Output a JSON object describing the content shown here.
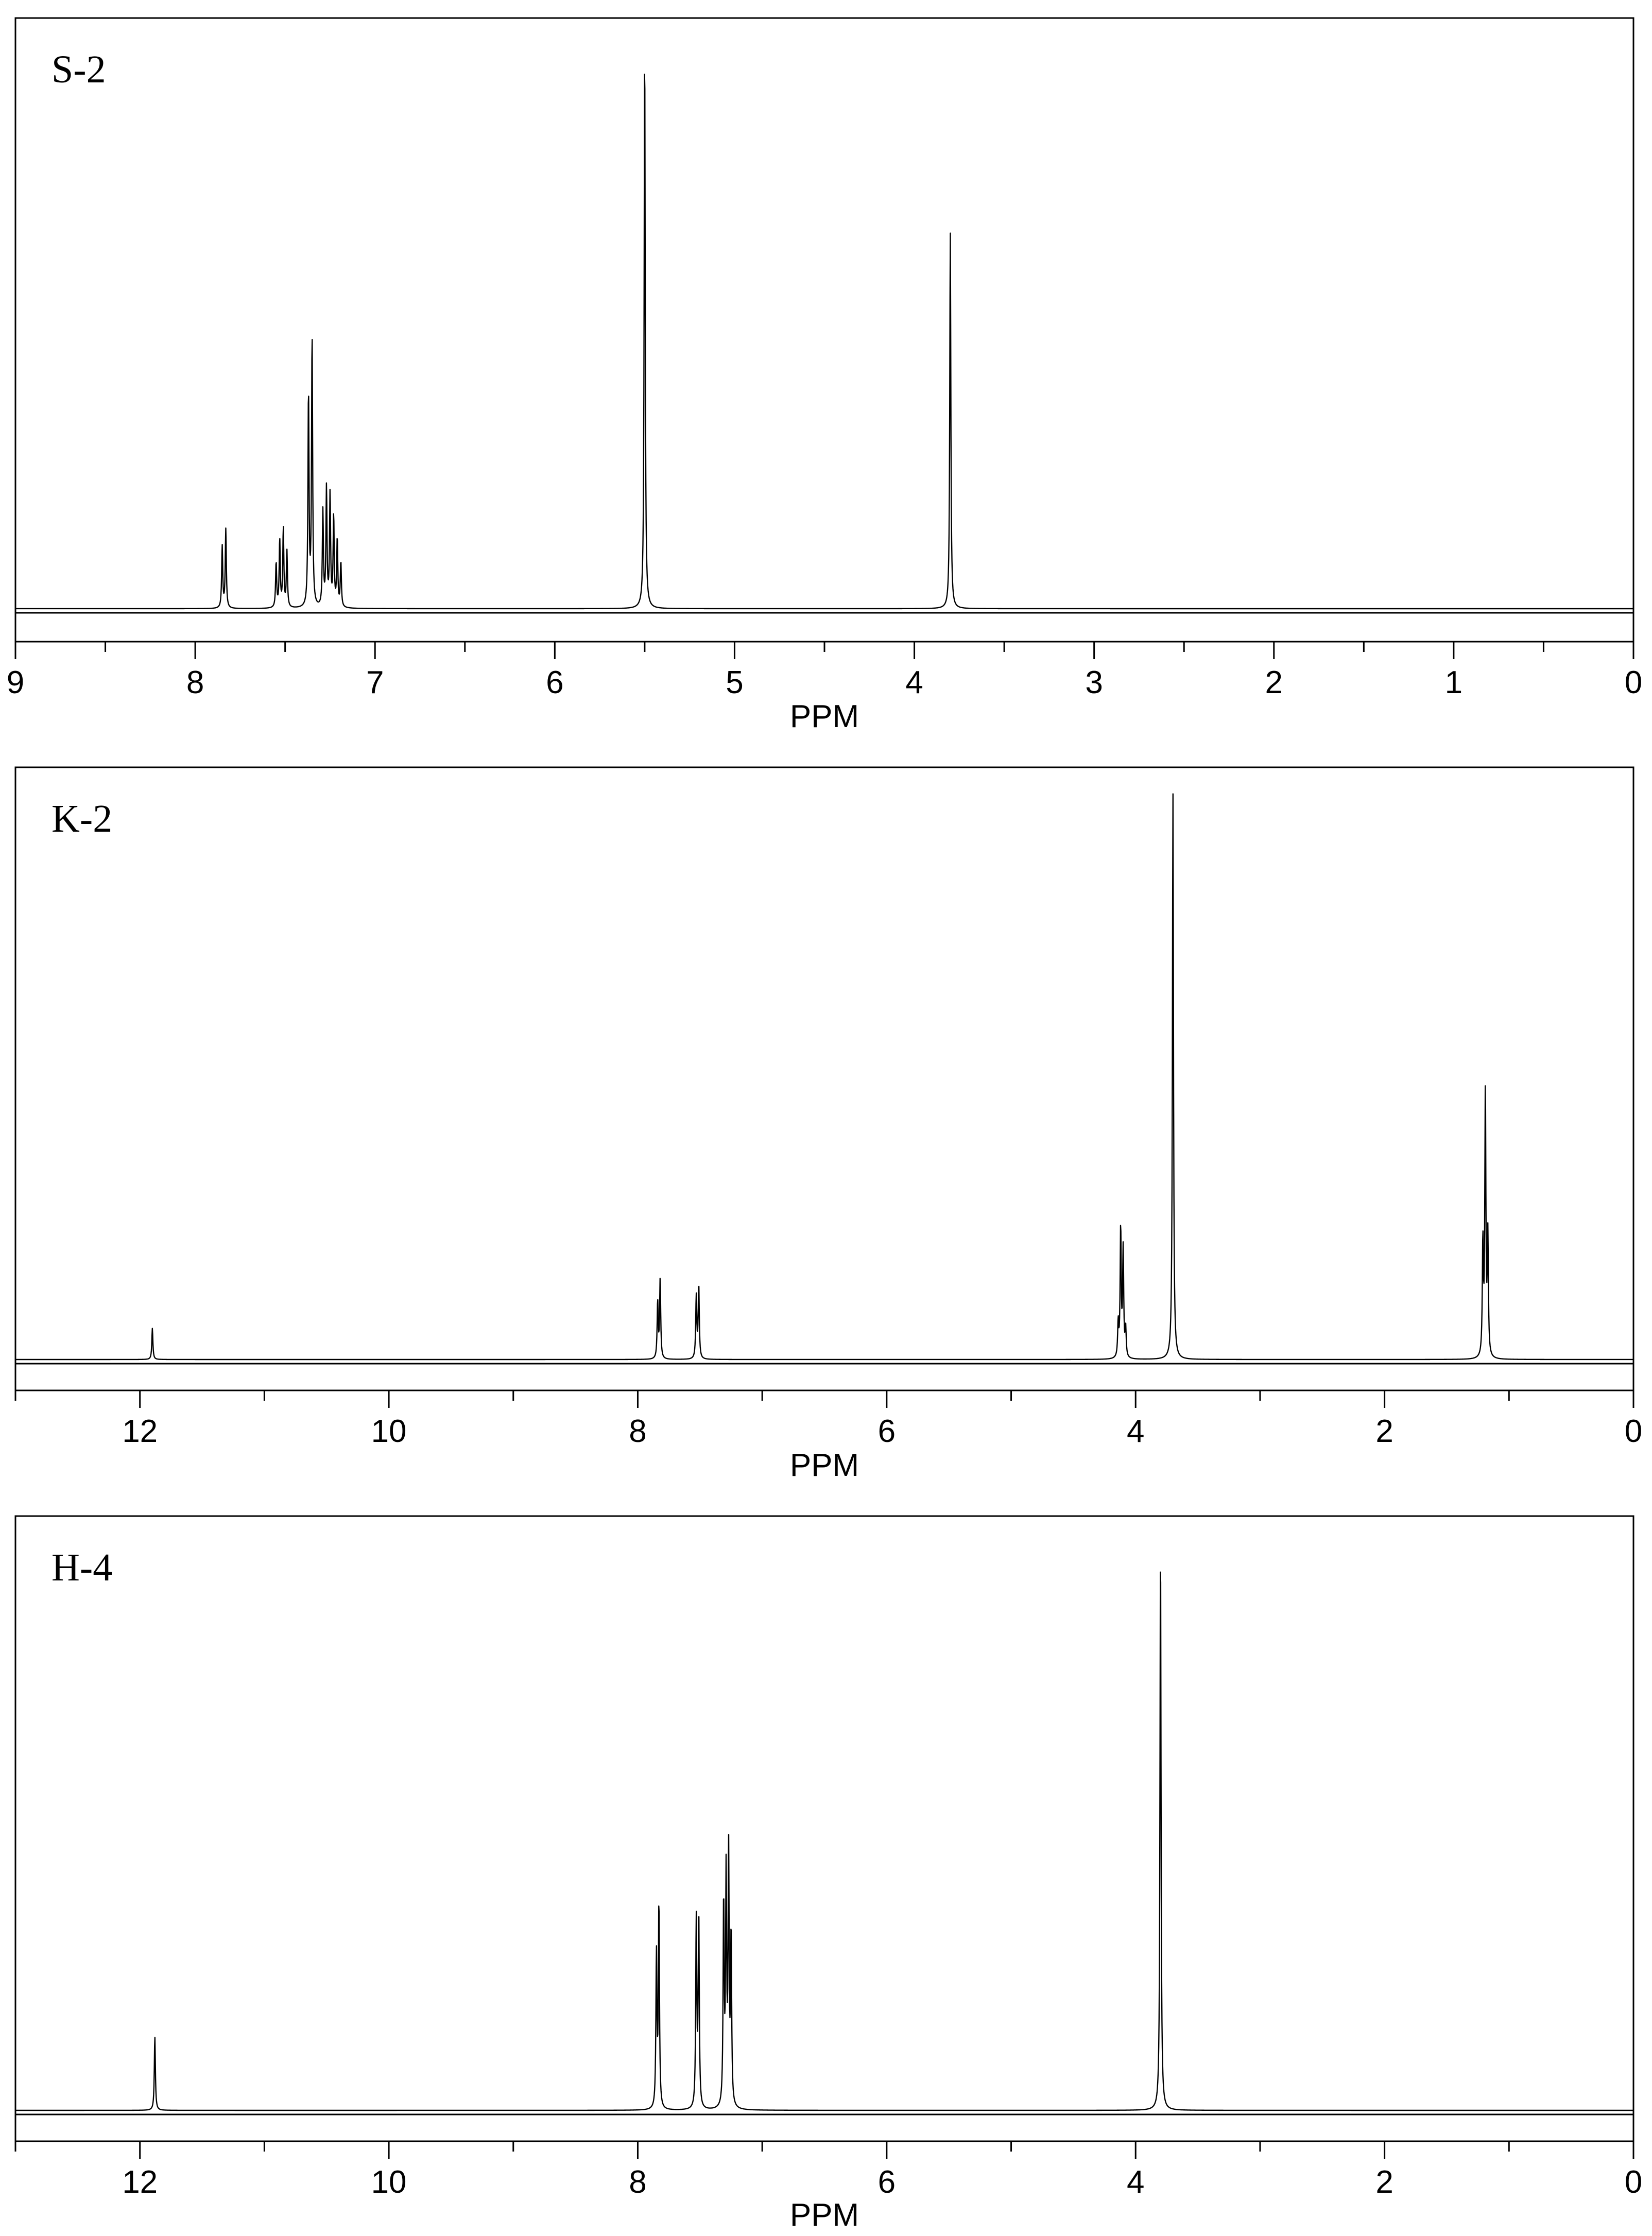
{
  "chart_data": [
    {
      "type": "line",
      "panel_label": "S-2",
      "xlabel": "PPM",
      "xlim": [
        9,
        0
      ],
      "x_reversed": true,
      "x_ticks": [
        9,
        8,
        7,
        6,
        5,
        4,
        3,
        2,
        1,
        0
      ],
      "ylim": [
        0,
        1
      ],
      "grid": false,
      "peaks": [
        {
          "ppm": 7.85,
          "height": 0.11
        },
        {
          "ppm": 7.83,
          "height": 0.14
        },
        {
          "ppm": 7.55,
          "height": 0.08
        },
        {
          "ppm": 7.53,
          "height": 0.12
        },
        {
          "ppm": 7.51,
          "height": 0.14
        },
        {
          "ppm": 7.49,
          "height": 0.1
        },
        {
          "ppm": 7.37,
          "height": 0.38
        },
        {
          "ppm": 7.35,
          "height": 0.48
        },
        {
          "ppm": 7.29,
          "height": 0.17
        },
        {
          "ppm": 7.27,
          "height": 0.21
        },
        {
          "ppm": 7.25,
          "height": 0.2
        },
        {
          "ppm": 7.23,
          "height": 0.16
        },
        {
          "ppm": 7.21,
          "height": 0.12
        },
        {
          "ppm": 7.19,
          "height": 0.08
        },
        {
          "ppm": 5.5,
          "height": 1.0
        },
        {
          "ppm": 3.8,
          "height": 0.67
        }
      ]
    },
    {
      "type": "line",
      "panel_label": "K-2",
      "xlabel": "PPM",
      "xlim": [
        13,
        0
      ],
      "x_reversed": true,
      "x_ticks": [
        12,
        10,
        8,
        6,
        4,
        2,
        0
      ],
      "ylim": [
        0,
        1
      ],
      "grid": false,
      "peaks": [
        {
          "ppm": 11.9,
          "height": 0.055
        },
        {
          "ppm": 7.84,
          "height": 0.1
        },
        {
          "ppm": 7.82,
          "height": 0.14
        },
        {
          "ppm": 7.53,
          "height": 0.11
        },
        {
          "ppm": 7.51,
          "height": 0.13
        },
        {
          "ppm": 4.14,
          "height": 0.06
        },
        {
          "ppm": 4.12,
          "height": 0.23
        },
        {
          "ppm": 4.1,
          "height": 0.19
        },
        {
          "ppm": 4.08,
          "height": 0.05
        },
        {
          "ppm": 3.7,
          "height": 1.0
        },
        {
          "ppm": 1.21,
          "height": 0.2
        },
        {
          "ppm": 1.19,
          "height": 0.47
        },
        {
          "ppm": 1.17,
          "height": 0.21
        }
      ]
    },
    {
      "type": "line",
      "panel_label": "H-4",
      "xlabel": "PPM",
      "xlim": [
        13,
        0
      ],
      "x_reversed": true,
      "x_ticks": [
        12,
        10,
        8,
        6,
        4,
        2,
        0
      ],
      "ylim": [
        0,
        1
      ],
      "grid": false,
      "peaks": [
        {
          "ppm": 11.88,
          "height": 0.13
        },
        {
          "ppm": 7.85,
          "height": 0.27
        },
        {
          "ppm": 7.83,
          "height": 0.36
        },
        {
          "ppm": 7.53,
          "height": 0.33
        },
        {
          "ppm": 7.51,
          "height": 0.34
        },
        {
          "ppm": 7.31,
          "height": 0.36
        },
        {
          "ppm": 7.29,
          "height": 0.4
        },
        {
          "ppm": 7.27,
          "height": 0.44
        },
        {
          "ppm": 7.25,
          "height": 0.3
        },
        {
          "ppm": 3.8,
          "height": 1.0
        }
      ]
    }
  ]
}
